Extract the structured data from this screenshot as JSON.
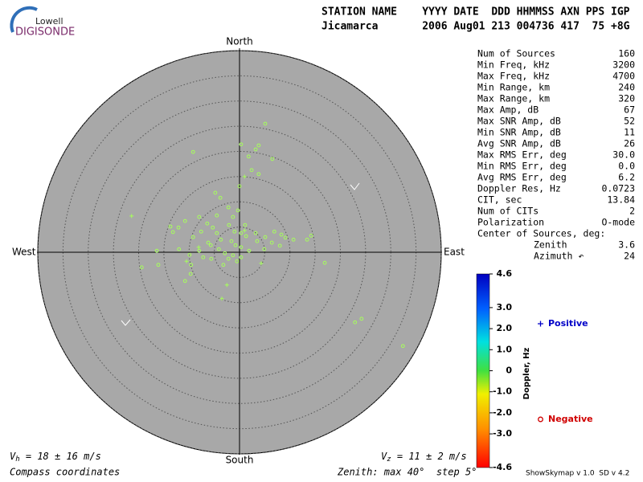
{
  "logo": {
    "top": "Lowell",
    "bottom": "DIGISONDE"
  },
  "header": {
    "labels": "STATION NAME    YYYY DATE  DDD HHMMSS AXN PPS IGP",
    "values": "Jicamarca       2006 Aug01 213 004736 417  75 +8G"
  },
  "stats": [
    [
      "Num of Sources",
      "160"
    ],
    [
      "Min Freq, kHz",
      "3200"
    ],
    [
      "Max Freq, kHz",
      "4700"
    ],
    [
      "Min Range, km",
      "240"
    ],
    [
      "Max Range, km",
      "320"
    ],
    [
      "Max Amp, dB",
      "67"
    ],
    [
      "Max SNR Amp, dB",
      "52"
    ],
    [
      "Min SNR Amp, dB",
      "11"
    ],
    [
      "Avg SNR Amp, dB",
      "26"
    ],
    [
      "Max RMS Err, deg",
      "30.0"
    ],
    [
      "Min RMS Err, deg",
      "0.0"
    ],
    [
      "Avg RMS Err, deg",
      "6.2"
    ],
    [
      "Doppler Res, Hz",
      "0.0723"
    ],
    [
      "CIT, sec",
      "13.84"
    ],
    [
      "Num of CITs",
      "2"
    ],
    [
      "Polarization",
      "O-mode"
    ],
    [
      "Center of Sources, deg:",
      ""
    ],
    [
      "Zenith",
      "3.6"
    ],
    [
      "Azimuth ↶",
      "24"
    ]
  ],
  "footer": {
    "vh": {
      "symbol": "V",
      "sub": "h",
      "text": " = 18 ± 16 m/s"
    },
    "vz": {
      "symbol": "V",
      "sub": "z",
      "text": " = 11 ± 2 m/s"
    },
    "coords": "Compass coordinates",
    "zenith": "Zenith: max 40°  step 5°",
    "version": "ShowSkymap v 1.0  SD v 4.2"
  },
  "chart_data": {
    "type": "skymap",
    "directions": {
      "north": "North",
      "south": "South",
      "east": "East",
      "west": "West"
    },
    "xlim": [
      -40,
      40
    ],
    "ylim": [
      -40,
      40
    ],
    "rticks": [
      5,
      10,
      15,
      20,
      25,
      30,
      35,
      40
    ],
    "marker_color": "#a6ff5a",
    "series": [
      {
        "name": "Positive",
        "color": "#0000c8",
        "marker": "plus",
        "x": [
          -21.4,
          -3.5,
          -2.5,
          1.0,
          1.0,
          -8.1,
          4.3,
          -10.5
        ],
        "values": [
          7.2,
          -9.2,
          -6.5,
          15.0,
          4.3,
          1.0,
          -2.2,
          -1.8
        ]
      },
      {
        "name": "Negative",
        "color": "#d00000",
        "marker": "circle",
        "x": [
          5.1,
          0.3,
          3.2,
          3.8,
          1.8,
          2.4,
          3.8,
          -9.2,
          6.5,
          -4.8,
          -3.8,
          0,
          -2.2,
          -4.5,
          -0.3,
          -5.3,
          -1.3,
          -6.4,
          -8.0,
          -10.8,
          -13.2,
          -12.1,
          -13.7,
          -9.2,
          -7.6,
          -2.1,
          -1.0,
          0.3,
          1.3,
          -1.6,
          -3.7,
          -5.7,
          -4.1,
          -2.9,
          -1.3,
          0.3,
          -0.5,
          -2.2,
          -3.2,
          -0.8,
          0.3,
          1.9,
          3.5,
          5.1,
          6.9,
          8.3,
          9.1,
          10.7,
          13.4,
          14.2,
          6.4,
          8.0,
          4.9,
          -12.0,
          -16.4,
          -16.1,
          -19.4,
          -9.9,
          -8.0,
          -5.6,
          -7.2,
          -9.6,
          -10.8,
          16.9,
          22.9,
          24.2,
          32.4,
          -9.7,
          -6.2,
          -4.5,
          1.1,
          3.2
        ],
        "values": [
          25.5,
          21.4,
          20.4,
          21.2,
          19.0,
          16.3,
          15.5,
          19.9,
          18.5,
          11.8,
          10.8,
          13.1,
          8.9,
          7.3,
          8.3,
          4.9,
          7.0,
          5.7,
          7.0,
          6.2,
          4.0,
          4.9,
          5.1,
          3.0,
          4.1,
          5.4,
          4.1,
          3.8,
          3.2,
          2.2,
          2.5,
          1.4,
          0.6,
          -0.2,
          -0.6,
          -1.0,
          -1.8,
          -1.3,
          -2.5,
          1.4,
          1.0,
          0.3,
          2.2,
          3.0,
          4.1,
          3.5,
          2.9,
          2.5,
          2.5,
          3.3,
          1.9,
          1.3,
          0.6,
          0.6,
          0.3,
          -2.5,
          -3.0,
          -0.5,
          0.3,
          -1.3,
          -1.0,
          -2.5,
          -5.7,
          -2.1,
          -13.9,
          -13.2,
          -18.6,
          -4.3,
          1.9,
          3.8,
          5.4,
          3.8
        ]
      }
    ],
    "colorbar": {
      "label": "Doppler, Hz",
      "lim": [
        -4.6,
        4.6
      ],
      "ticks": [
        4.6,
        {
          "value": 3,
          "label": "3.0"
        },
        {
          "value": 2,
          "label": "2.0"
        },
        {
          "value": 1,
          "label": "1.0"
        },
        0,
        {
          "value": -1,
          "label": "-1.0"
        },
        {
          "value": -2,
          "label": "-2.0"
        },
        {
          "value": -3,
          "label": "-3.0"
        },
        -4.6
      ]
    }
  }
}
